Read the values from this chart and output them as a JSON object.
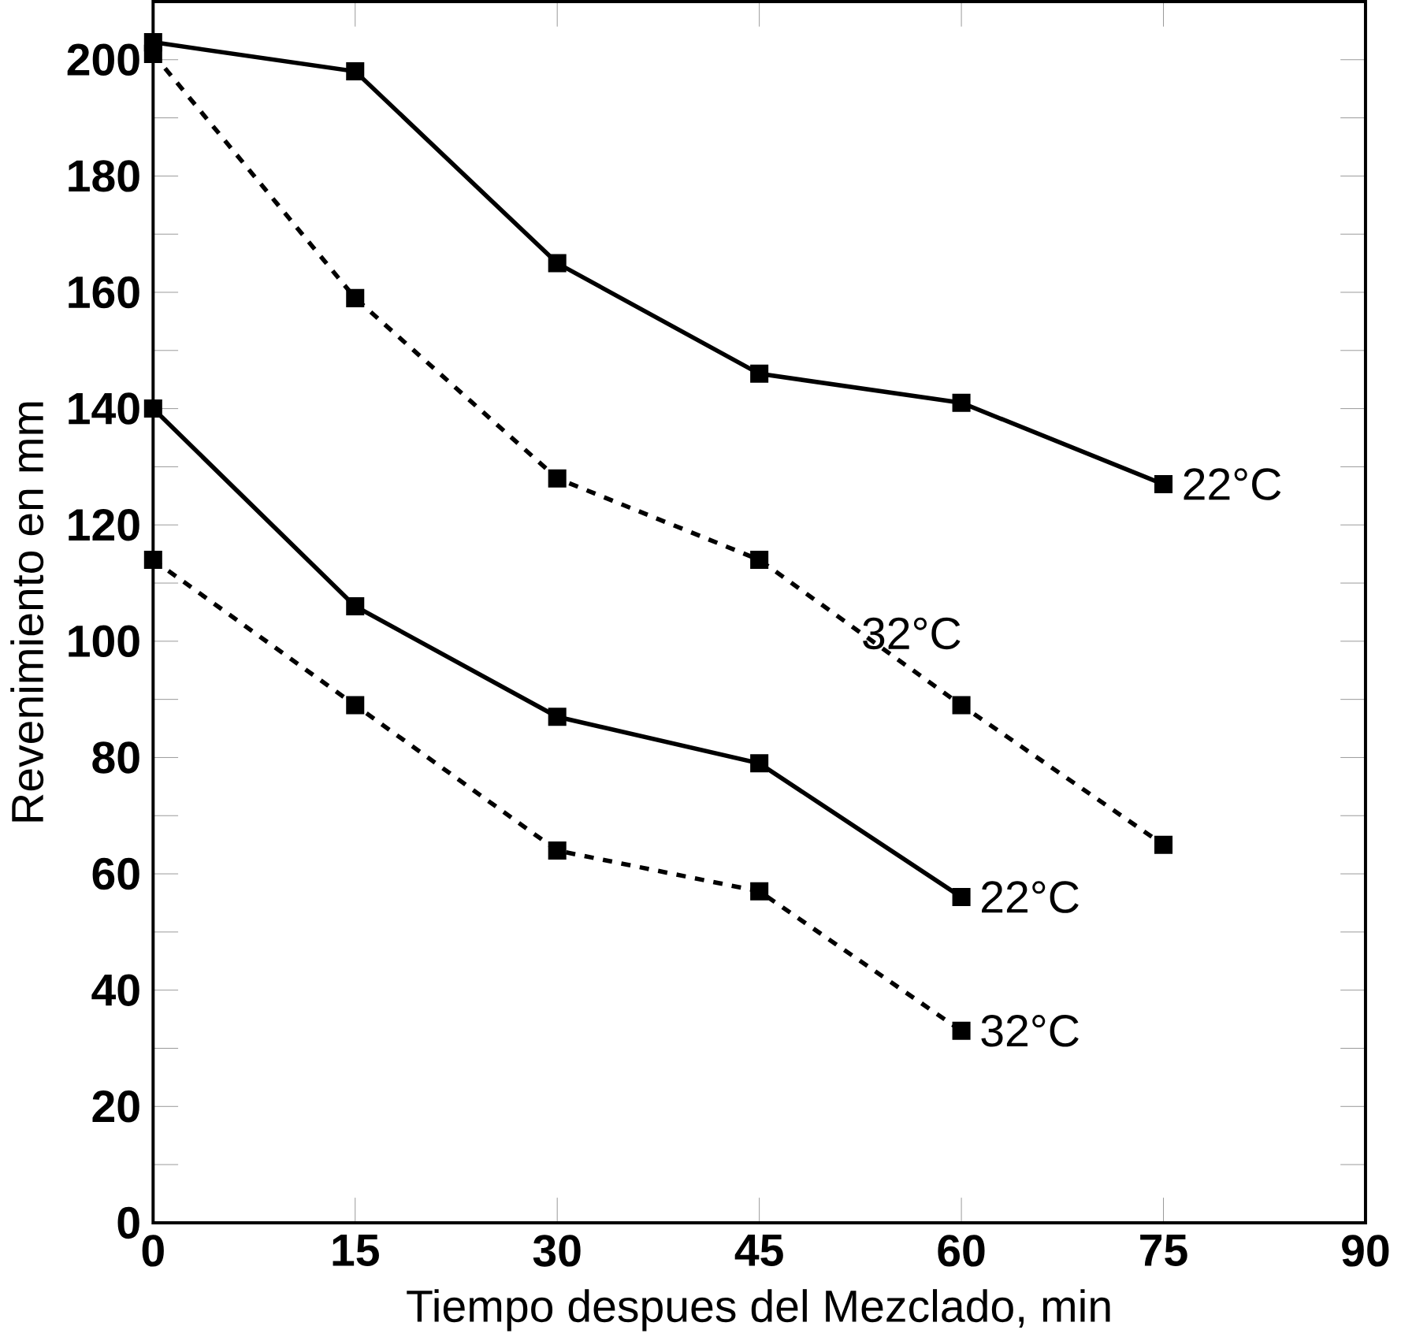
{
  "chart_data": {
    "type": "line",
    "xlabel": "Tiempo despues del Mezclado, min",
    "ylabel": "Revenimiento en mm",
    "x": [
      0,
      15,
      30,
      45,
      60,
      75
    ],
    "series": [
      {
        "name": "22°C",
        "color": "#000000",
        "line_style": "solid",
        "values": [
          203,
          198,
          165,
          146,
          141,
          127
        ]
      },
      {
        "name": "32°C",
        "color": "#000000",
        "line_style": "dashed",
        "values": [
          201,
          159,
          128,
          114,
          89,
          65
        ]
      },
      {
        "name": "22°C",
        "color": "#000000",
        "line_style": "solid",
        "values": [
          140,
          106,
          87,
          79,
          56,
          null
        ]
      },
      {
        "name": "32°C",
        "color": "#000000",
        "line_style": "dashed",
        "values": [
          114,
          89,
          64,
          57,
          33,
          null
        ]
      }
    ],
    "xlim": [
      0,
      90
    ],
    "ylim": [
      0,
      210
    ],
    "xticks": [
      0,
      15,
      30,
      45,
      60,
      75,
      90
    ],
    "yticks": [
      0,
      20,
      40,
      60,
      80,
      100,
      120,
      140,
      160,
      180,
      200
    ],
    "marker": "square",
    "grid": false
  }
}
